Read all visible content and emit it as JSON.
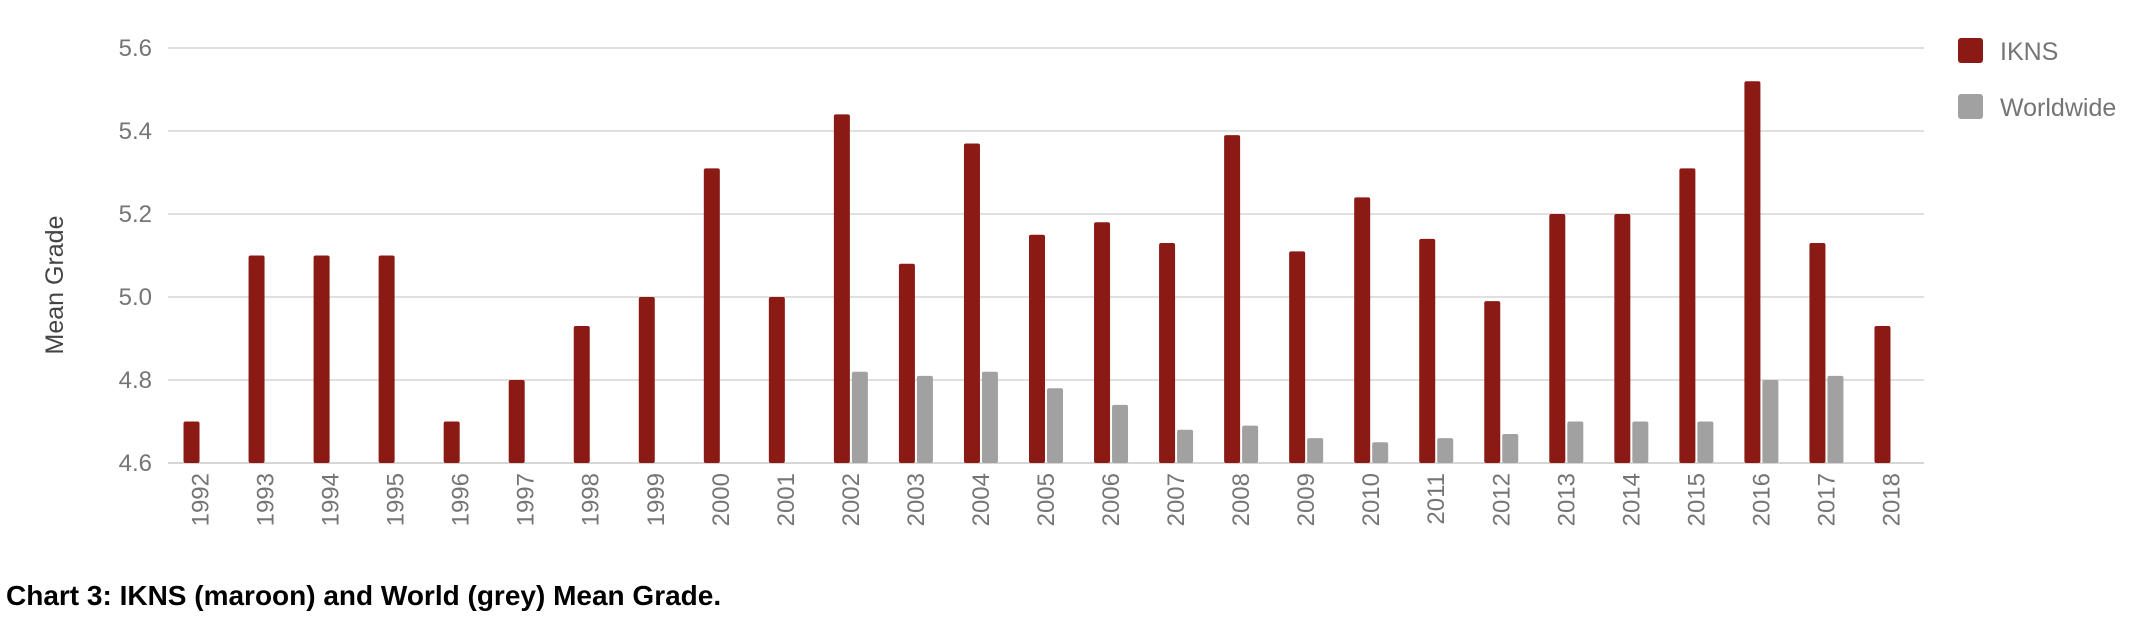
{
  "caption": "Chart 3:  IKNS (maroon) and World (grey) Mean Grade.",
  "colors": {
    "ikns": "#8b1a14",
    "worldwide": "#a1a1a1",
    "grid": "#d6d6d6",
    "axis_text": "#757575"
  },
  "chart_data": {
    "type": "bar",
    "ylabel": "Mean Grade",
    "xlabel": "",
    "ylim": [
      4.6,
      5.6
    ],
    "yticks": [
      "4.6",
      "4.8",
      "5.0",
      "5.2",
      "5.4",
      "5.6"
    ],
    "grid": true,
    "legend_position": "right",
    "categories": [
      "1992",
      "1993",
      "1994",
      "1995",
      "1996",
      "1997",
      "1998",
      "1999",
      "2000",
      "2001",
      "2002",
      "2003",
      "2004",
      "2005",
      "2006",
      "2007",
      "2008",
      "2009",
      "2010",
      "2011",
      "2012",
      "2013",
      "2014",
      "2015",
      "2016",
      "2017",
      "2018"
    ],
    "series": [
      {
        "name": "IKNS",
        "values": [
          4.7,
          5.1,
          5.1,
          5.1,
          4.7,
          4.8,
          4.93,
          5.0,
          5.31,
          5.0,
          5.44,
          5.08,
          5.37,
          5.15,
          5.18,
          5.13,
          5.39,
          5.11,
          5.24,
          5.14,
          4.99,
          5.2,
          5.2,
          5.31,
          5.52,
          5.13,
          4.93
        ]
      },
      {
        "name": "Worldwide",
        "values": [
          null,
          null,
          null,
          null,
          null,
          null,
          null,
          null,
          null,
          null,
          4.82,
          4.81,
          4.82,
          4.78,
          4.74,
          4.68,
          4.69,
          4.66,
          4.65,
          4.66,
          4.67,
          4.7,
          4.7,
          4.7,
          4.8,
          4.81,
          null
        ]
      }
    ]
  }
}
